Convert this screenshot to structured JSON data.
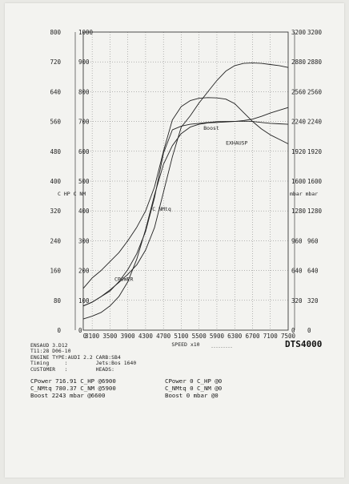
{
  "chart_data": {
    "type": "line",
    "xlabel": "SPEED   x10",
    "x_ticks": [
      3100,
      3500,
      3900,
      4300,
      4700,
      5100,
      5500,
      5900,
      6300,
      6700,
      7100,
      7500
    ],
    "x_first_label": "0",
    "xlim": [
      2900,
      7500
    ],
    "left_axis_outer_ticks": [
      "800",
      "720",
      "640",
      "560",
      "480",
      "400",
      "320",
      "240",
      "160",
      "80",
      "0"
    ],
    "left_axis_outer_values": [
      800,
      720,
      640,
      560,
      480,
      400,
      320,
      240,
      160,
      80,
      0
    ],
    "left_axis_inner_ticks": [
      "1000",
      "900",
      "800",
      "700",
      "600",
      "500",
      "400",
      "300",
      "200",
      "100",
      "0"
    ],
    "left_axis_label": "C HP C NM",
    "right_axis_inner_ticks": [
      "3200",
      "2880",
      "2560",
      "2240",
      "1920",
      "1600",
      "1280",
      "960",
      "640",
      "320",
      "0"
    ],
    "right_axis_outer_ticks": [
      "3200",
      "2880",
      "2560",
      "2240",
      "1920",
      "1600",
      "1280",
      "960",
      "640",
      "320",
      "0"
    ],
    "right_axis_label": "mbar mbar",
    "grid": true,
    "series": [
      {
        "name": "CPower",
        "x": [
          2900,
          3100,
          3300,
          3500,
          3700,
          3900,
          4100,
          4300,
          4500,
          4700,
          4900,
          5100,
          5300,
          5500,
          5700,
          5900,
          6100,
          6300,
          6500,
          6700,
          6900,
          7100,
          7300,
          7500
        ],
        "y": [
          65,
          75,
          90,
          108,
          128,
          150,
          175,
          215,
          275,
          370,
          465,
          545,
          575,
          610,
          640,
          670,
          695,
          710,
          716,
          717,
          716,
          713,
          710,
          705
        ],
        "axis": "left_outer"
      },
      {
        "name": "C NMtq",
        "x": [
          2900,
          3100,
          3300,
          3500,
          3700,
          3900,
          4100,
          4300,
          4500,
          4700,
          4900,
          5100,
          5300,
          5500,
          5700,
          5900,
          6100,
          6300,
          6500,
          6700,
          6900,
          7100,
          7300,
          7500
        ],
        "y": [
          140,
          175,
          200,
          230,
          260,
          300,
          345,
          400,
          480,
          600,
          705,
          750,
          770,
          778,
          780,
          779,
          775,
          760,
          730,
          700,
          675,
          655,
          640,
          625
        ],
        "axis": "left_inner"
      },
      {
        "name": "Boost",
        "x": [
          2900,
          3100,
          3300,
          3500,
          3700,
          3900,
          4100,
          4300,
          4500,
          4700,
          4900,
          5100,
          5300,
          5500,
          5700,
          5900,
          6100,
          6300,
          6500,
          6600,
          6700,
          6900,
          7100,
          7300,
          7500
        ],
        "y": [
          260,
          300,
          360,
          420,
          520,
          650,
          820,
          1060,
          1420,
          1900,
          2150,
          2190,
          2210,
          2220,
          2230,
          2238,
          2240,
          2242,
          2243,
          2243,
          2240,
          2230,
          2220,
          2215,
          2210
        ],
        "axis": "right"
      },
      {
        "name": "EXHAUSP",
        "x": [
          2900,
          3100,
          3300,
          3500,
          3700,
          3900,
          4100,
          4300,
          4500,
          4700,
          4900,
          5100,
          5300,
          5500,
          5700,
          5900,
          6100,
          6300,
          6500,
          6700,
          6900,
          7100,
          7300,
          7500
        ],
        "y": [
          120,
          150,
          190,
          260,
          360,
          520,
          760,
          1080,
          1450,
          1780,
          1980,
          2110,
          2180,
          2210,
          2225,
          2230,
          2235,
          2240,
          2250,
          2265,
          2295,
          2330,
          2360,
          2390
        ],
        "axis": "right"
      }
    ],
    "annotations": [
      {
        "text": "Boost",
        "x": 5600,
        "y": 2150,
        "axis": "right"
      },
      {
        "text": "EXHAUSP",
        "x": 6100,
        "y": 1990,
        "axis": "right"
      },
      {
        "text": "C NMtq",
        "x": 4450,
        "y": 400,
        "axis": "left_inner"
      },
      {
        "text": "CPOWER",
        "x": 3600,
        "y": 165,
        "axis": "left_inner"
      }
    ],
    "brand": "DTS4000"
  },
  "info": {
    "file": "ENSAUD 3.D12",
    "time_date": "T11:28 D06-10",
    "engine_line": "ENGINE TYPE:AUDI 2.2 CARB:SB4",
    "timing_line": "Timing     :         Jets:Bos 1640",
    "customer_line": "CUSTOMER   :         HEADS:"
  },
  "results": {
    "left": [
      "CPower 716.91 C_HP @6900",
      "C_NMtq 780.37 C_NM @5900",
      "Boost 2243 mbar @6600"
    ],
    "right": [
      "CPower 0 C_HP @0",
      "C_NMtq 0 C_NM @0",
      "Boost 0 mbar @0"
    ]
  }
}
